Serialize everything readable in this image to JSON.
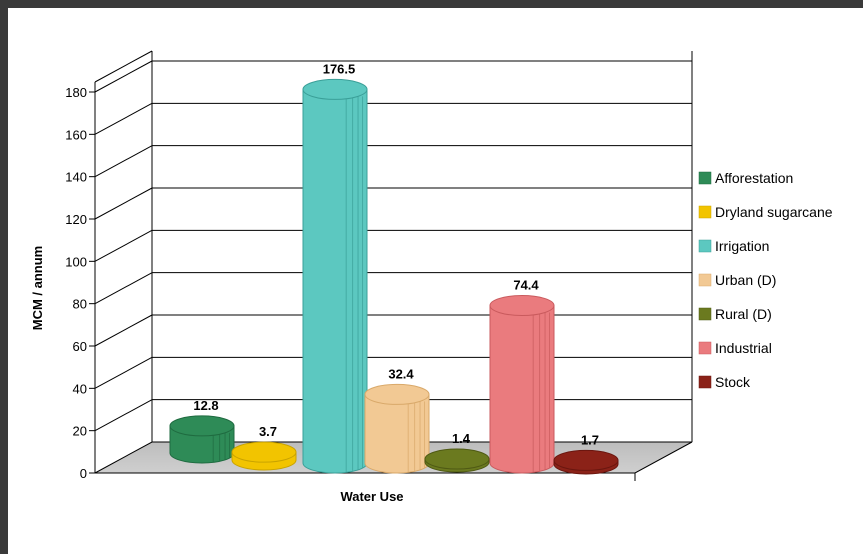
{
  "chart_data": {
    "type": "bar",
    "categories": [
      "Afforestation",
      "Dryland sugarcane",
      "Irrigation",
      "Urban (D)",
      "Rural (D)",
      "Industrial",
      "Stock"
    ],
    "values": [
      12.8,
      3.7,
      176.5,
      32.4,
      1.4,
      74.4,
      1.7
    ],
    "value_labels": [
      "12.8",
      "3.7",
      "176.5",
      "32.4",
      "1.4",
      "74.4",
      "1.7"
    ],
    "colors": [
      "#2e8b57",
      "#f2c400",
      "#5cc8c0",
      "#f2c994",
      "#6b7a1f",
      "#ea7b7e",
      "#8b2218"
    ],
    "dark_colors": [
      "#1f6b40",
      "#c9a300",
      "#3a9f98",
      "#d9a96a",
      "#4f5a14",
      "#c95a5d",
      "#6a160f"
    ],
    "xlabel": "Water Use",
    "ylabel": "MCM / annum",
    "ylim": [
      0,
      180
    ],
    "yticks": [
      0,
      20,
      40,
      60,
      80,
      100,
      120,
      140,
      160,
      180
    ],
    "grid": true,
    "legend_position": "right",
    "style": "3d-cylinder"
  }
}
